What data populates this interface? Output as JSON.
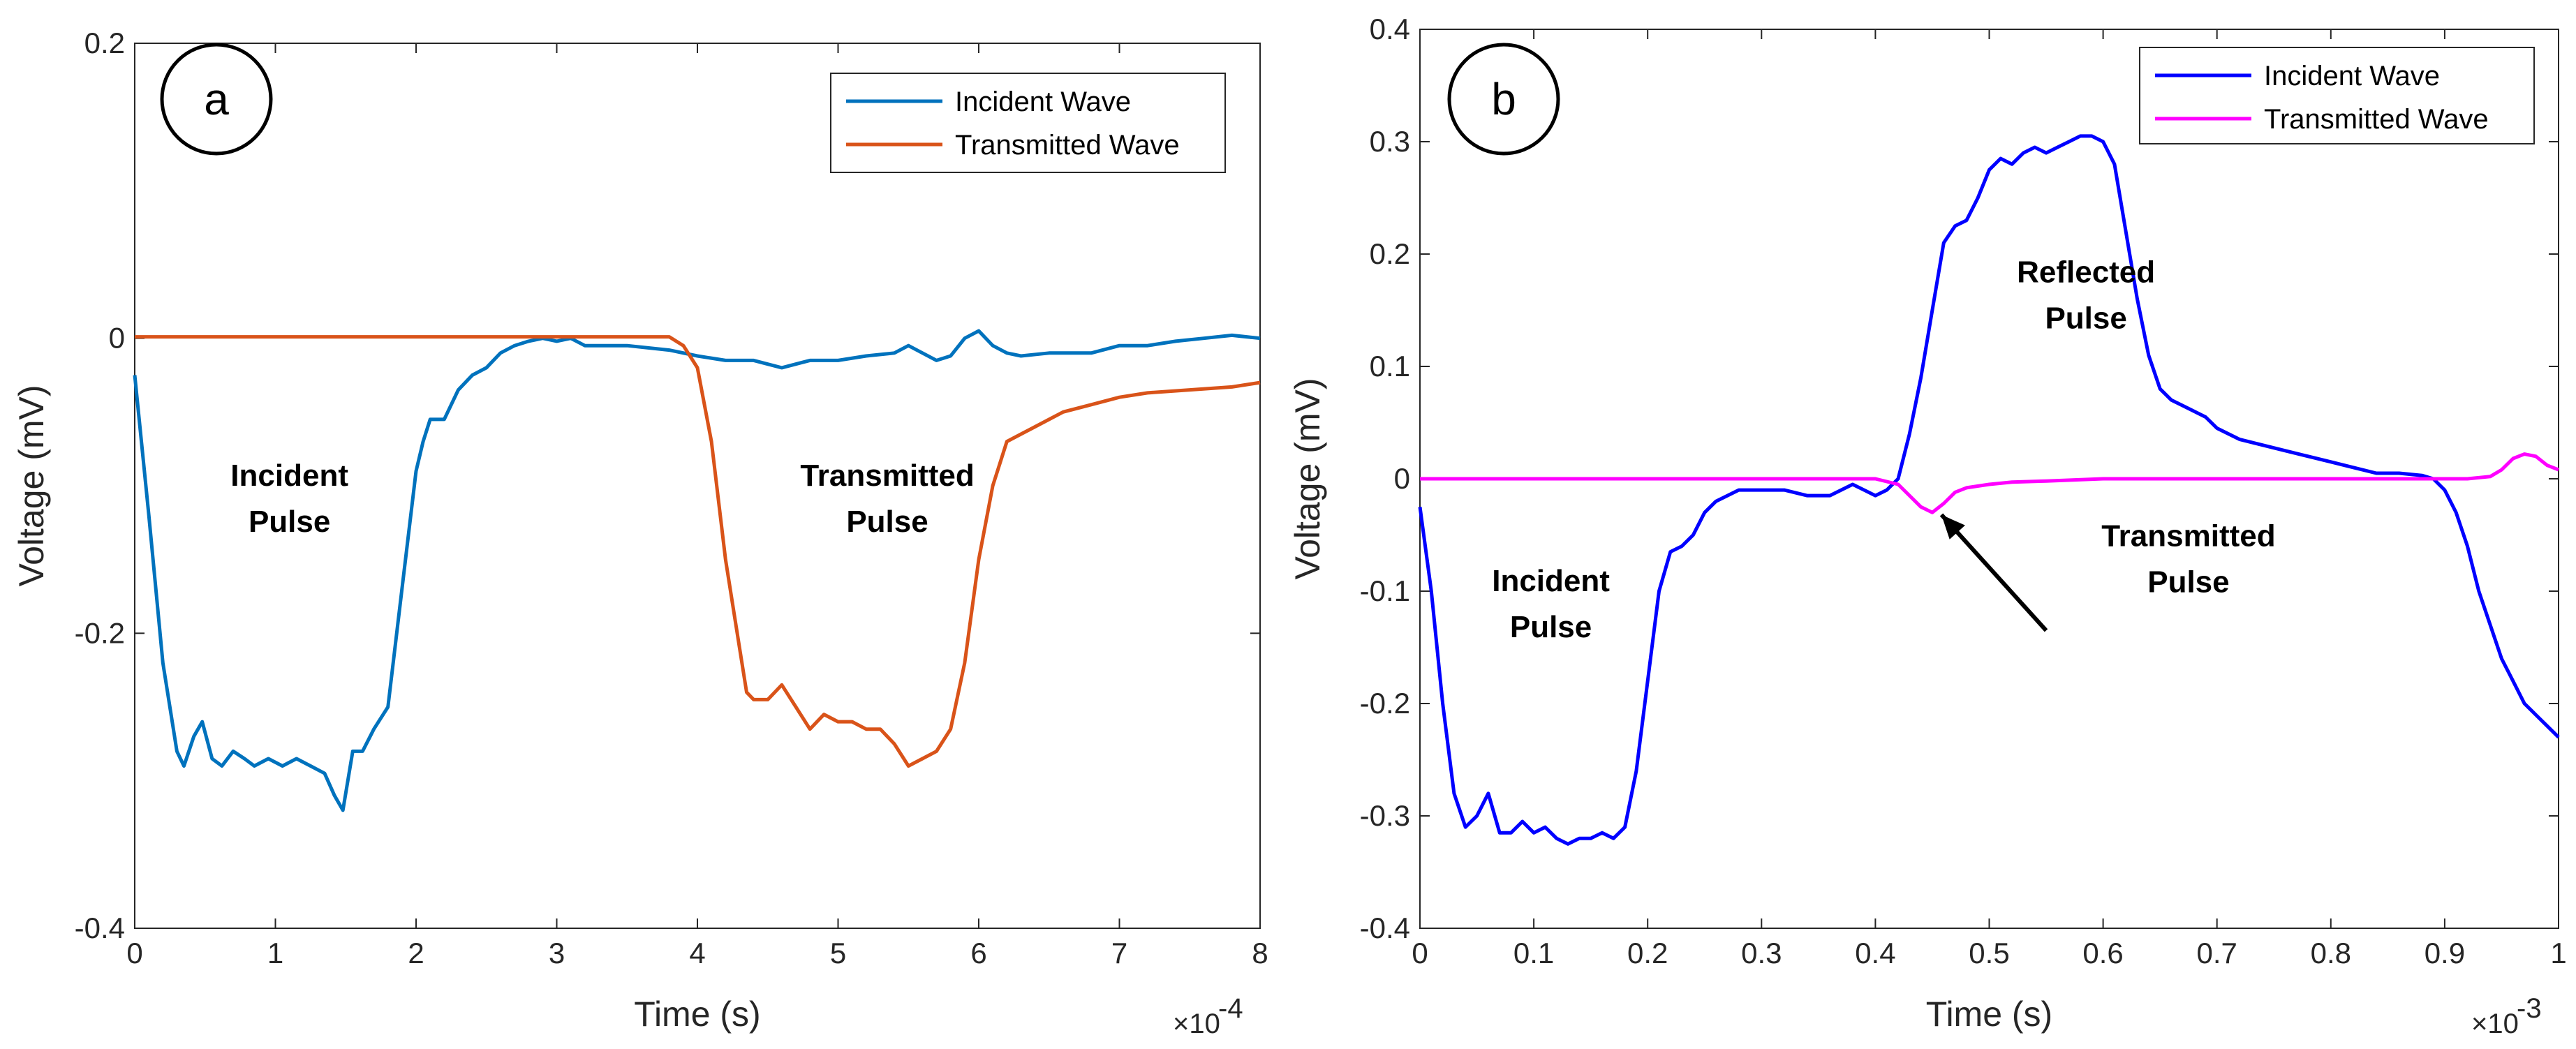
{
  "chart_data": [
    {
      "type": "line",
      "panel_label": "a",
      "xlabel": "Time (s)",
      "ylabel": "Voltage (mV)",
      "x_multiplier_base": "×10",
      "x_multiplier_exp": "-4",
      "xlim": [
        0,
        8
      ],
      "ylim": [
        -0.4,
        0.2
      ],
      "xticks": [
        0,
        1,
        2,
        3,
        4,
        5,
        6,
        7,
        8
      ],
      "xtick_labels": [
        "0",
        "1",
        "2",
        "3",
        "4",
        "5",
        "6",
        "7",
        "8"
      ],
      "yticks": [
        -0.4,
        -0.2,
        0,
        0.2
      ],
      "ytick_labels": [
        "-0.4",
        "-0.2",
        "0",
        "0.2"
      ],
      "grid": false,
      "legend_position": "top-right",
      "series": [
        {
          "name": "Incident Wave",
          "color": "#0072BD",
          "x": [
            0,
            0.1,
            0.2,
            0.3,
            0.35,
            0.42,
            0.48,
            0.55,
            0.62,
            0.7,
            0.78,
            0.85,
            0.95,
            1.05,
            1.15,
            1.25,
            1.35,
            1.42,
            1.48,
            1.55,
            1.62,
            1.7,
            1.8,
            1.9,
            2.0,
            2.05,
            2.1,
            2.2,
            2.3,
            2.4,
            2.5,
            2.6,
            2.7,
            2.8,
            2.9,
            3.0,
            3.1,
            3.2,
            3.3,
            3.5,
            3.8,
            4.0,
            4.2,
            4.4,
            4.6,
            4.8,
            5.0,
            5.2,
            5.4,
            5.5,
            5.6,
            5.7,
            5.8,
            5.9,
            6.0,
            6.1,
            6.2,
            6.3,
            6.5,
            6.8,
            7.0,
            7.2,
            7.4,
            7.6,
            7.8,
            8.0
          ],
          "y": [
            -0.025,
            -0.12,
            -0.22,
            -0.28,
            -0.29,
            -0.27,
            -0.26,
            -0.285,
            -0.29,
            -0.28,
            -0.285,
            -0.29,
            -0.285,
            -0.29,
            -0.285,
            -0.29,
            -0.295,
            -0.31,
            -0.32,
            -0.28,
            -0.28,
            -0.265,
            -0.25,
            -0.17,
            -0.09,
            -0.07,
            -0.055,
            -0.055,
            -0.035,
            -0.025,
            -0.02,
            -0.01,
            -0.005,
            -0.002,
            0.0,
            -0.002,
            0.0,
            -0.005,
            -0.005,
            -0.005,
            -0.008,
            -0.012,
            -0.015,
            -0.015,
            -0.02,
            -0.015,
            -0.015,
            -0.012,
            -0.01,
            -0.005,
            -0.01,
            -0.015,
            -0.012,
            0.0,
            0.005,
            -0.005,
            -0.01,
            -0.012,
            -0.01,
            -0.01,
            -0.005,
            -0.005,
            -0.002,
            0.0,
            0.002,
            0.0
          ]
        },
        {
          "name": "Transmitted Wave",
          "color": "#D95319",
          "x": [
            0,
            0.5,
            1.0,
            1.5,
            2.0,
            2.5,
            3.0,
            3.5,
            3.8,
            3.9,
            4.0,
            4.1,
            4.2,
            4.3,
            4.35,
            4.4,
            4.5,
            4.6,
            4.7,
            4.8,
            4.9,
            5.0,
            5.1,
            5.2,
            5.3,
            5.4,
            5.5,
            5.6,
            5.7,
            5.8,
            5.9,
            6.0,
            6.1,
            6.2,
            6.3,
            6.4,
            6.5,
            6.6,
            6.8,
            7.0,
            7.2,
            7.5,
            7.8,
            8.0
          ],
          "y": [
            0.001,
            0.001,
            0.001,
            0.001,
            0.001,
            0.001,
            0.001,
            0.001,
            0.001,
            -0.005,
            -0.02,
            -0.07,
            -0.15,
            -0.21,
            -0.24,
            -0.245,
            -0.245,
            -0.235,
            -0.25,
            -0.265,
            -0.255,
            -0.26,
            -0.26,
            -0.265,
            -0.265,
            -0.275,
            -0.29,
            -0.285,
            -0.28,
            -0.265,
            -0.22,
            -0.15,
            -0.1,
            -0.07,
            -0.065,
            -0.06,
            -0.055,
            -0.05,
            -0.045,
            -0.04,
            -0.037,
            -0.035,
            -0.033,
            -0.03
          ]
        }
      ],
      "annotations": [
        {
          "line1": "Incident",
          "line2": "Pulse",
          "x": 1.1,
          "y": -0.1
        },
        {
          "line1": "Transmitted",
          "line2": "Pulse",
          "x": 5.35,
          "y": -0.1
        }
      ]
    },
    {
      "type": "line",
      "panel_label": "b",
      "xlabel": "Time (s)",
      "ylabel": "Voltage (mV)",
      "x_multiplier_base": "×10",
      "x_multiplier_exp": "-3",
      "xlim": [
        0,
        1
      ],
      "ylim": [
        -0.4,
        0.4
      ],
      "xticks": [
        0,
        0.1,
        0.2,
        0.3,
        0.4,
        0.5,
        0.6,
        0.7,
        0.8,
        0.9,
        1
      ],
      "xtick_labels": [
        "0",
        "0.1",
        "0.2",
        "0.3",
        "0.4",
        "0.5",
        "0.6",
        "0.7",
        "0.8",
        "0.9",
        "1"
      ],
      "yticks": [
        -0.4,
        -0.3,
        -0.2,
        -0.1,
        0,
        0.1,
        0.2,
        0.3,
        0.4
      ],
      "ytick_labels": [
        "-0.4",
        "-0.3",
        "-0.2",
        "-0.1",
        "0",
        "0.1",
        "0.2",
        "0.3",
        "0.4"
      ],
      "grid": false,
      "legend_position": "top-right",
      "series": [
        {
          "name": "Incident Wave",
          "color": "#0000FF",
          "x": [
            0,
            0.01,
            0.02,
            0.03,
            0.04,
            0.05,
            0.06,
            0.07,
            0.08,
            0.09,
            0.1,
            0.11,
            0.12,
            0.13,
            0.14,
            0.15,
            0.16,
            0.17,
            0.18,
            0.19,
            0.2,
            0.21,
            0.22,
            0.23,
            0.24,
            0.25,
            0.26,
            0.28,
            0.3,
            0.32,
            0.34,
            0.36,
            0.38,
            0.4,
            0.41,
            0.42,
            0.43,
            0.44,
            0.45,
            0.46,
            0.47,
            0.48,
            0.49,
            0.5,
            0.51,
            0.52,
            0.53,
            0.54,
            0.55,
            0.56,
            0.57,
            0.58,
            0.59,
            0.6,
            0.61,
            0.62,
            0.63,
            0.64,
            0.65,
            0.66,
            0.67,
            0.68,
            0.69,
            0.7,
            0.72,
            0.74,
            0.76,
            0.78,
            0.8,
            0.82,
            0.84,
            0.86,
            0.88,
            0.89,
            0.9,
            0.91,
            0.92,
            0.93,
            0.94,
            0.95,
            0.96,
            0.97,
            0.98,
            0.99,
            1.0
          ],
          "y": [
            -0.025,
            -0.1,
            -0.2,
            -0.28,
            -0.31,
            -0.3,
            -0.28,
            -0.315,
            -0.315,
            -0.305,
            -0.315,
            -0.31,
            -0.32,
            -0.325,
            -0.32,
            -0.32,
            -0.315,
            -0.32,
            -0.31,
            -0.26,
            -0.18,
            -0.1,
            -0.065,
            -0.06,
            -0.05,
            -0.03,
            -0.02,
            -0.01,
            -0.01,
            -0.01,
            -0.015,
            -0.015,
            -0.005,
            -0.015,
            -0.01,
            0.0,
            0.04,
            0.09,
            0.15,
            0.21,
            0.225,
            0.23,
            0.25,
            0.275,
            0.285,
            0.28,
            0.29,
            0.295,
            0.29,
            0.295,
            0.3,
            0.305,
            0.305,
            0.3,
            0.28,
            0.22,
            0.16,
            0.11,
            0.08,
            0.07,
            0.065,
            0.06,
            0.055,
            0.045,
            0.035,
            0.03,
            0.025,
            0.02,
            0.015,
            0.01,
            0.005,
            0.005,
            0.003,
            0.0,
            -0.01,
            -0.03,
            -0.06,
            -0.1,
            -0.13,
            -0.16,
            -0.18,
            -0.2,
            -0.21,
            -0.22,
            -0.23
          ]
        },
        {
          "name": "Transmitted Wave",
          "color": "#FF00FF",
          "x": [
            0,
            0.1,
            0.2,
            0.3,
            0.4,
            0.42,
            0.43,
            0.44,
            0.45,
            0.46,
            0.47,
            0.48,
            0.5,
            0.52,
            0.55,
            0.6,
            0.7,
            0.8,
            0.9,
            0.92,
            0.94,
            0.95,
            0.96,
            0.97,
            0.98,
            0.99,
            1.0
          ],
          "y": [
            0.0,
            0.0,
            0.0,
            0.0,
            0.0,
            -0.005,
            -0.015,
            -0.025,
            -0.03,
            -0.022,
            -0.012,
            -0.008,
            -0.005,
            -0.003,
            -0.002,
            0.0,
            0.0,
            0.0,
            0.0,
            0.0,
            0.002,
            0.008,
            0.018,
            0.022,
            0.02,
            0.012,
            0.008
          ]
        }
      ],
      "annotations": [
        {
          "line1": "Reflected",
          "line2": "Pulse",
          "x": 0.585,
          "y": 0.175
        },
        {
          "line1": "Incident",
          "line2": "Pulse",
          "x": 0.115,
          "y": -0.1
        },
        {
          "line1": "Transmitted",
          "line2": "Pulse",
          "x": 0.675,
          "y": -0.06
        }
      ],
      "arrow": {
        "from": [
          0.55,
          -0.135
        ],
        "to": [
          0.458,
          -0.032
        ]
      }
    }
  ]
}
